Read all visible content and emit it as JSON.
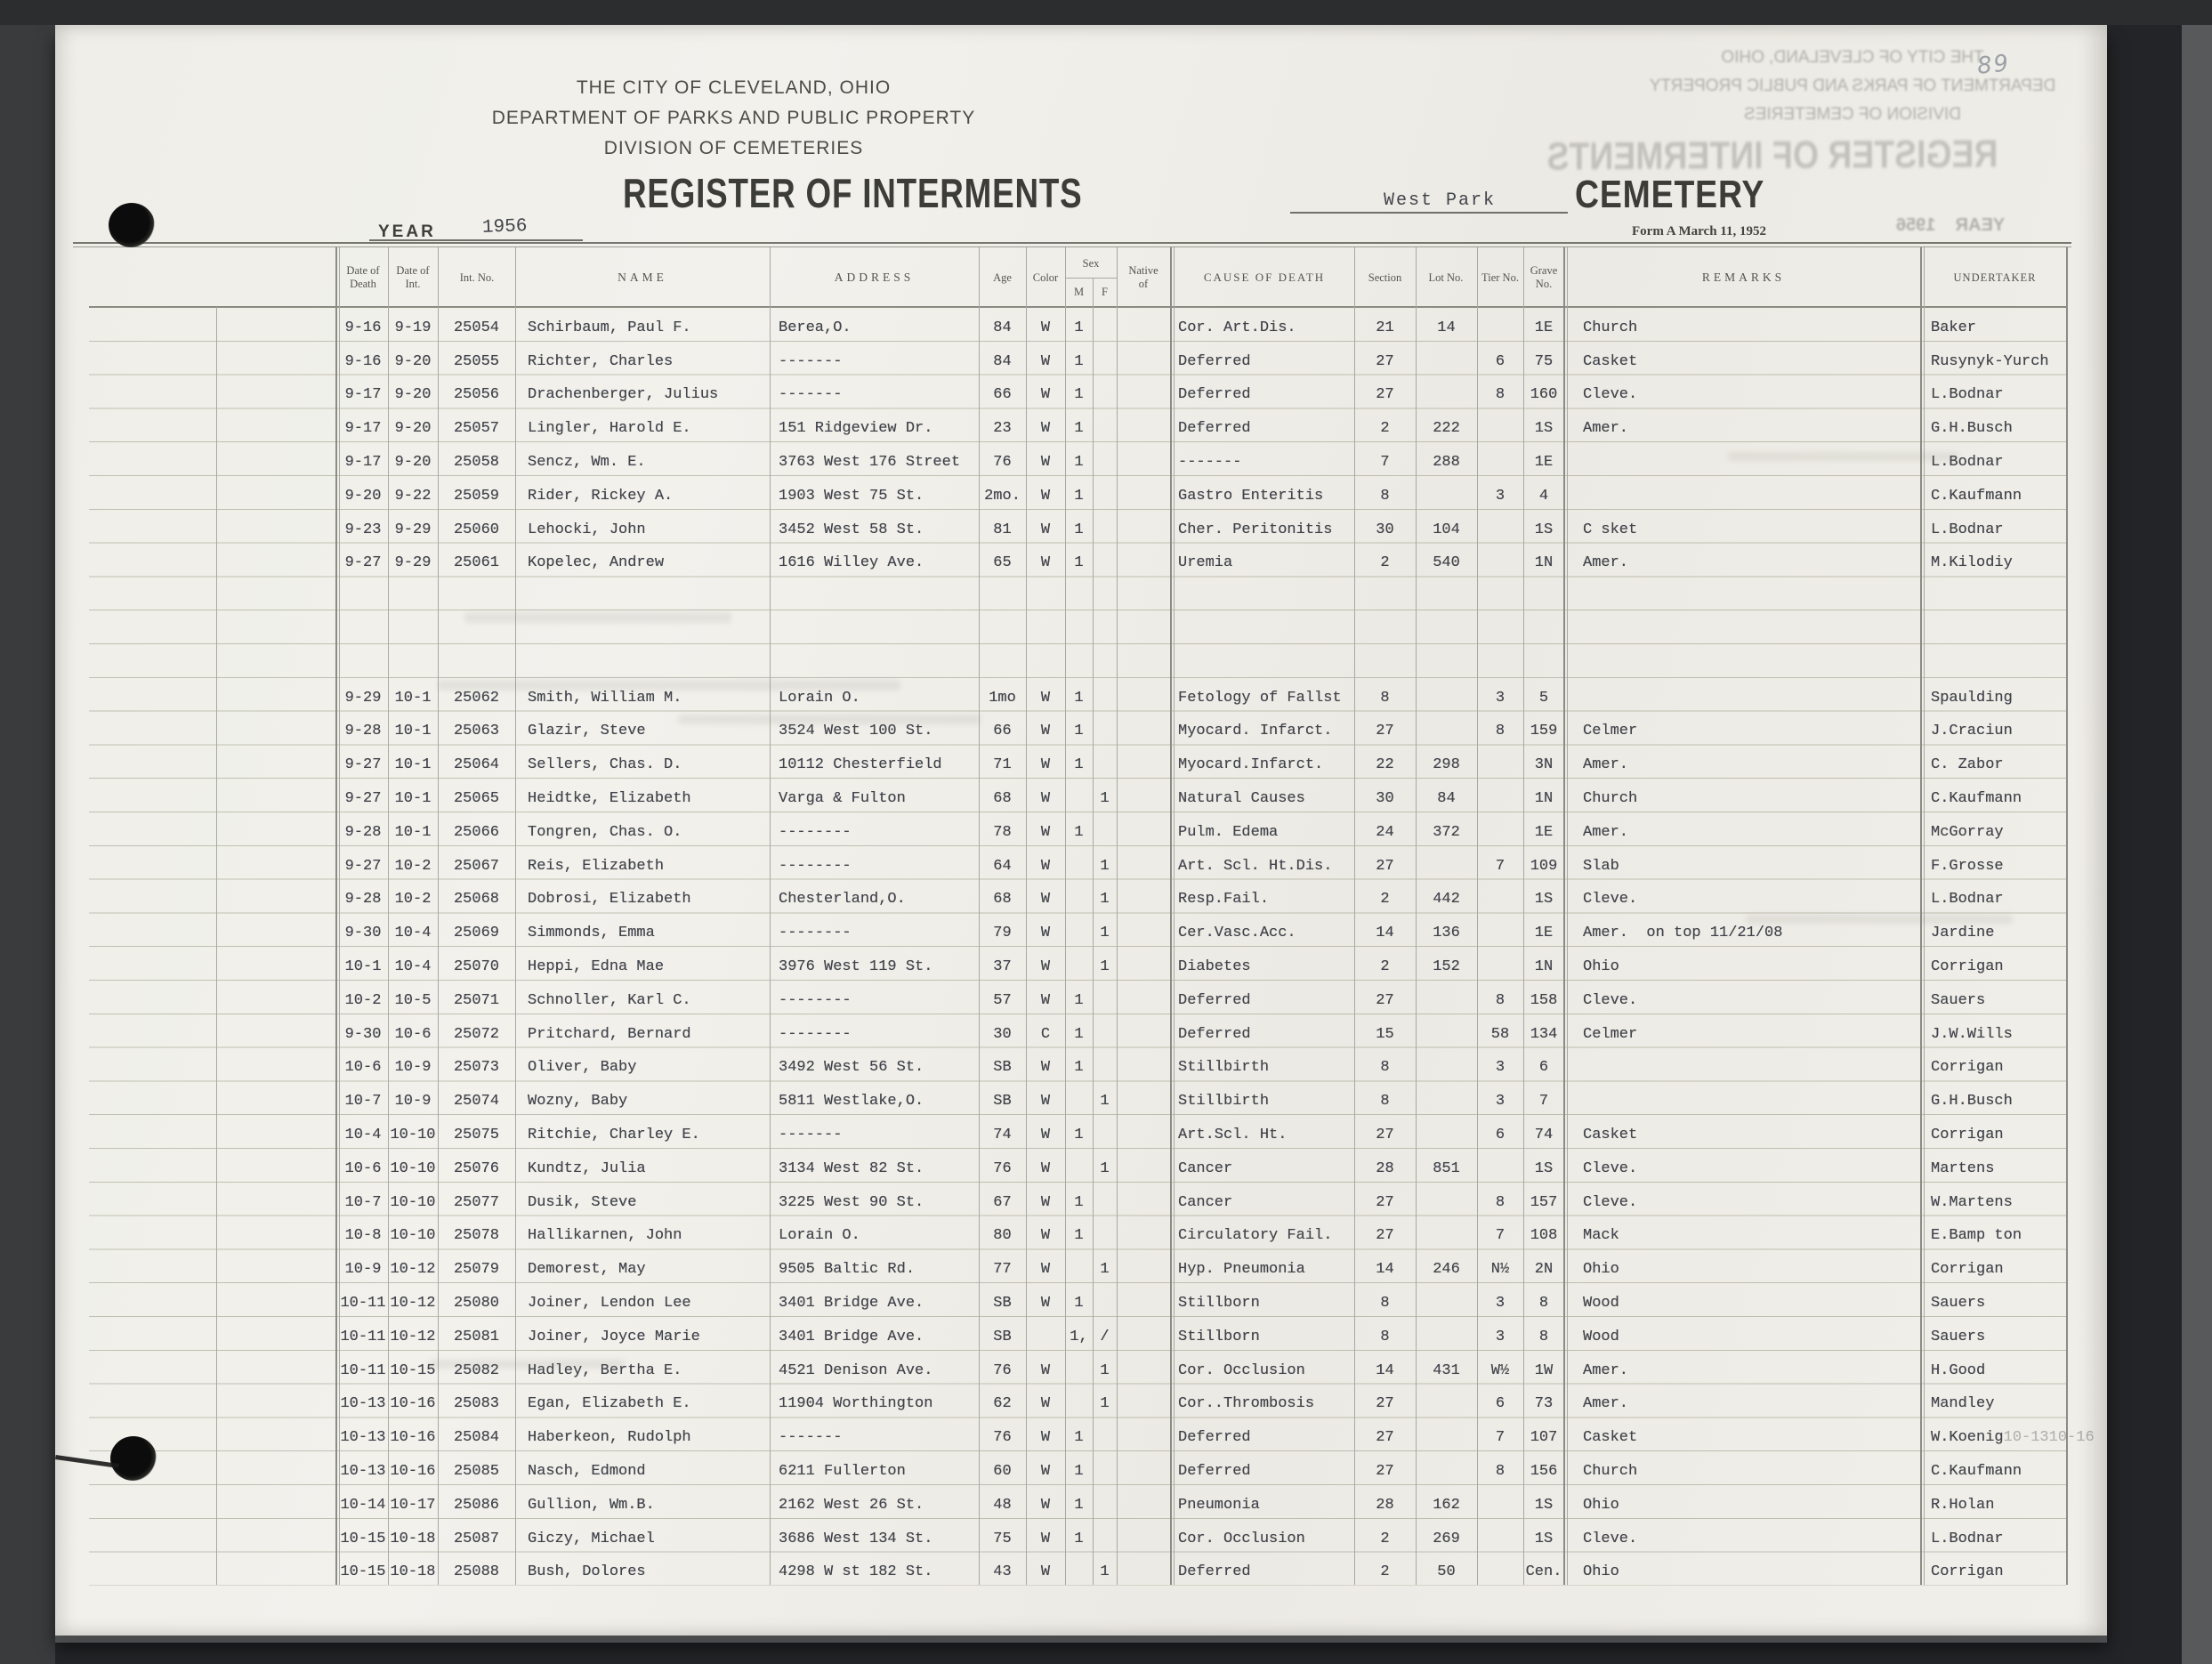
{
  "page_number": "89",
  "header": {
    "org_line1": "THE CITY OF CLEVELAND, OHIO",
    "org_line2": "DEPARTMENT OF PARKS AND PUBLIC PROPERTY",
    "org_line3": "DIVISION OF CEMETERIES",
    "title": "REGISTER OF INTERMENTS",
    "cemetery_name": "West Park",
    "cemetery_label": "CEMETERY",
    "year_label": "YEAR",
    "year_value": "1956",
    "form_note": "Form A March 11, 1952"
  },
  "colors": {
    "paper": "#f0efe9",
    "ink": "#41434b",
    "print": "#4a4a46",
    "binder_dark": "#232427",
    "binder_light": "#58595b",
    "pencil": "#9aa0a6"
  },
  "table": {
    "headers": {
      "date_of_death": "Date of Death",
      "date_of_int": "Date of Int.",
      "int_no": "Int. No.",
      "name": "NAME",
      "address": "ADDRESS",
      "age": "Age",
      "color": "Color",
      "sex": "Sex",
      "sex_m": "M",
      "sex_f": "F",
      "native_of": "Native of",
      "cause": "CAUSE OF DEATH",
      "section": "Section",
      "lot": "Lot No.",
      "tier": "Tier No.",
      "grave": "Grave No.",
      "remarks": "REMARKS",
      "undertaker": "UNDERTAKER"
    },
    "rows": [
      {
        "dd": "9-16",
        "di": "9-19",
        "no": "25054",
        "name": "Schirbaum, Paul F.",
        "addr": "Berea,O.",
        "age": "84",
        "color": "W",
        "m": "1",
        "f": "",
        "cause": "Cor. Art.Dis.",
        "section": "21",
        "lot": "14",
        "tier": "",
        "grave": "1E",
        "remarks": "Church",
        "undertaker": "Baker"
      },
      {
        "dd": "9-16",
        "di": "9-20",
        "no": "25055",
        "name": "Richter, Charles",
        "addr": "-------",
        "age": "84",
        "color": "W",
        "m": "1",
        "f": "",
        "cause": "Deferred",
        "section": "27",
        "lot": "",
        "tier": "6",
        "grave": "75",
        "remarks": "Casket",
        "undertaker": "Rusynyk-Yurch"
      },
      {
        "dd": "9-17",
        "di": "9-20",
        "no": "25056",
        "name": "Drachenberger, Julius",
        "addr": "-------",
        "age": "66",
        "color": "W",
        "m": "1",
        "f": "",
        "cause": "Deferred",
        "section": "27",
        "lot": "",
        "tier": "8",
        "grave": "160",
        "remarks": "Cleve.",
        "undertaker": "L.Bodnar"
      },
      {
        "dd": "9-17",
        "di": "9-20",
        "no": "25057",
        "name": "Lingler, Harold E.",
        "addr": "151 Ridgeview Dr.",
        "age": "23",
        "color": "W",
        "m": "1",
        "f": "",
        "cause": "Deferred",
        "section": "2",
        "lot": "222",
        "tier": "",
        "grave": "1S",
        "remarks": "Amer.",
        "undertaker": "G.H.Busch"
      },
      {
        "dd": "9-17",
        "di": "9-20",
        "no": "25058",
        "name": "Sencz, Wm. E.",
        "addr": "3763 West 176 Street",
        "age": "76",
        "color": "W",
        "m": "1",
        "f": "",
        "cause": "-------",
        "section": "7",
        "lot": "288",
        "tier": "",
        "grave": "1E",
        "remarks": "",
        "undertaker": "L.Bodnar"
      },
      {
        "dd": "9-20",
        "di": "9-22",
        "no": "25059",
        "name": "Rider, Rickey A.",
        "addr": "1903 West 75 St.",
        "age": "2mo.",
        "color": "W",
        "m": "1",
        "f": "",
        "cause": "Gastro Enteritis",
        "section": "8",
        "lot": "",
        "tier": "3",
        "grave": "4",
        "remarks": "",
        "undertaker": "C.Kaufmann"
      },
      {
        "dd": "9-23",
        "di": "9-29",
        "no": "25060",
        "name": "Lehocki, John",
        "addr": "3452 West 58 St.",
        "age": "81",
        "color": "W",
        "m": "1",
        "f": "",
        "cause": "Cher. Peritonitis",
        "section": "30",
        "lot": "104",
        "tier": "",
        "grave": "1S",
        "remarks": "C sket",
        "undertaker": "L.Bodnar"
      },
      {
        "dd": "9-27",
        "di": "9-29",
        "no": "25061",
        "name": "Kopelec, Andrew",
        "addr": "1616 Willey Ave.",
        "age": "65",
        "color": "W",
        "m": "1",
        "f": "",
        "cause": "Uremia",
        "section": "2",
        "lot": "540",
        "tier": "",
        "grave": "1N",
        "remarks": "Amer.",
        "undertaker": "M.Kilodiy"
      },
      {},
      {},
      {},
      {
        "dd": "9-29",
        "di": "10-1",
        "no": "25062",
        "name": "Smith, William M.",
        "addr": "Lorain O.",
        "age": "1mo",
        "color": "W",
        "m": "1",
        "f": "",
        "cause": "Fetology of Fallst",
        "section": "8",
        "lot": "",
        "tier": "3",
        "grave": "5",
        "remarks": "",
        "undertaker": "Spaulding"
      },
      {
        "dd": "9-28",
        "di": "10-1",
        "no": "25063",
        "name": "Glazir, Steve",
        "addr": "3524 West 100 St.",
        "age": "66",
        "color": "W",
        "m": "1",
        "f": "",
        "cause": "Myocard. Infarct.",
        "section": "27",
        "lot": "",
        "tier": "8",
        "grave": "159",
        "remarks": "Celmer",
        "undertaker": "J.Craciun"
      },
      {
        "dd": "9-27",
        "di": "10-1",
        "no": "25064",
        "name": "Sellers, Chas. D.",
        "addr": "10112 Chesterfield",
        "age": "71",
        "color": "W",
        "m": "1",
        "f": "",
        "cause": "Myocard.Infarct.",
        "section": "22",
        "lot": "298",
        "tier": "",
        "grave": "3N",
        "remarks": "Amer.",
        "undertaker": "C. Zabor"
      },
      {
        "dd": "9-27",
        "di": "10-1",
        "no": "25065",
        "name": "Heidtke, Elizabeth",
        "addr": "Varga & Fulton",
        "age": "68",
        "color": "W",
        "m": "",
        "f": "1",
        "cause": "Natural Causes",
        "section": "30",
        "lot": "84",
        "tier": "",
        "grave": "1N",
        "remarks": "Church",
        "undertaker": "C.Kaufmann"
      },
      {
        "dd": "9-28",
        "di": "10-1",
        "no": "25066",
        "name": "Tongren, Chas. O.",
        "addr": "--------",
        "age": "78",
        "color": "W",
        "m": "1",
        "f": "",
        "cause": "Pulm. Edema",
        "section": "24",
        "lot": "372",
        "tier": "",
        "grave": "1E",
        "remarks": "Amer.",
        "undertaker": "McGorray"
      },
      {
        "dd": "9-27",
        "di": "10-2",
        "no": "25067",
        "name": "Reis, Elizabeth",
        "addr": "--------",
        "age": "64",
        "color": "W",
        "m": "",
        "f": "1",
        "cause": "Art. Scl. Ht.Dis.",
        "section": "27",
        "lot": "",
        "tier": "7",
        "grave": "109",
        "remarks": "Slab",
        "undertaker": "F.Grosse"
      },
      {
        "dd": "9-28",
        "di": "10-2",
        "no": "25068",
        "name": "Dobrosi, Elizabeth",
        "addr": "Chesterland,O.",
        "age": "68",
        "color": "W",
        "m": "",
        "f": "1",
        "cause": "Resp.Fail.",
        "section": "2",
        "lot": "442",
        "tier": "",
        "grave": "1S",
        "remarks": "Cleve.",
        "undertaker": "L.Bodnar"
      },
      {
        "dd": "9-30",
        "di": "10-4",
        "no": "25069",
        "name": "Simmonds, Emma",
        "addr": "--------",
        "age": "79",
        "color": "W",
        "m": "",
        "f": "1",
        "cause": "Cer.Vasc.Acc.",
        "section": "14",
        "lot": "136",
        "tier": "",
        "grave": "1E",
        "remarks": "Amer.  on top 11/21/08",
        "undertaker": "Jardine"
      },
      {
        "dd": "10-1",
        "di": "10-4",
        "no": "25070",
        "name": "Heppi, Edna Mae",
        "addr": "3976 West 119 St.",
        "age": "37",
        "color": "W",
        "m": "",
        "f": "1",
        "cause": "Diabetes",
        "section": "2",
        "lot": "152",
        "tier": "",
        "grave": "1N",
        "remarks": "Ohio",
        "undertaker": "Corrigan"
      },
      {
        "dd": "10-2",
        "di": "10-5",
        "no": "25071",
        "name": "Schnoller, Karl C.",
        "addr": "--------",
        "age": "57",
        "color": "W",
        "m": "1",
        "f": "",
        "cause": "Deferred",
        "section": "27",
        "lot": "",
        "tier": "8",
        "grave": "158",
        "remarks": "Cleve.",
        "undertaker": "Sauers"
      },
      {
        "dd": "9-30",
        "di": "10-6",
        "no": "25072",
        "name": "Pritchard, Bernard",
        "addr": "--------",
        "age": "30",
        "color": "C",
        "m": "1",
        "f": "",
        "cause": "Deferred",
        "section": "15",
        "lot": "",
        "tier": "58",
        "grave": "134",
        "remarks": "Celmer",
        "undertaker": "J.W.Wills"
      },
      {
        "dd": "10-6",
        "di": "10-9",
        "no": "25073",
        "name": "Oliver, Baby",
        "addr": "3492 West 56 St.",
        "age": "SB",
        "color": "W",
        "m": "1",
        "f": "",
        "cause": "Stillbirth",
        "section": "8",
        "lot": "",
        "tier": "3",
        "grave": "6",
        "remarks": "",
        "undertaker": "Corrigan"
      },
      {
        "dd": "10-7",
        "di": "10-9",
        "no": "25074",
        "name": "Wozny, Baby",
        "addr": "5811 Westlake,O.",
        "age": "SB",
        "color": "W",
        "m": "",
        "f": "1",
        "cause": "Stillbirth",
        "section": "8",
        "lot": "",
        "tier": "3",
        "grave": "7",
        "remarks": "",
        "undertaker": "G.H.Busch"
      },
      {
        "dd": "10-4",
        "di": "10-10",
        "no": "25075",
        "name": "Ritchie, Charley E.",
        "addr": "-------",
        "age": "74",
        "color": "W",
        "m": "1",
        "f": "",
        "cause": "Art.Scl. Ht.",
        "section": "27",
        "lot": "",
        "tier": "6",
        "grave": "74",
        "remarks": "Casket",
        "undertaker": "Corrigan"
      },
      {
        "dd": "10-6",
        "di": "10-10",
        "no": "25076",
        "name": "Kundtz, Julia",
        "addr": "3134 West 82 St.",
        "age": "76",
        "color": "W",
        "m": "",
        "f": "1",
        "cause": "Cancer",
        "section": "28",
        "lot": "851",
        "tier": "",
        "grave": "1S",
        "remarks": "Cleve.",
        "undertaker": "Martens"
      },
      {
        "dd": "10-7",
        "di": "10-10",
        "no": "25077",
        "name": "Dusik, Steve",
        "addr": "3225 West 90 St.",
        "age": "67",
        "color": "W",
        "m": "1",
        "f": "",
        "cause": "Cancer",
        "section": "27",
        "lot": "",
        "tier": "8",
        "grave": "157",
        "remarks": "Cleve.",
        "undertaker": "W.Martens"
      },
      {
        "dd": "10-8",
        "di": "10-10",
        "no": "25078",
        "name": "Hallikarnen, John",
        "addr": "Lorain O.",
        "age": "80",
        "color": "W",
        "m": "1",
        "f": "",
        "cause": "Circulatory Fail.",
        "section": "27",
        "lot": "",
        "tier": "7",
        "grave": "108",
        "remarks": "Mack",
        "undertaker": "E.Bamp ton"
      },
      {
        "dd": "10-9",
        "di": "10-12",
        "no": "25079",
        "name": "Demorest, May",
        "addr": "9505 Baltic Rd.",
        "age": "77",
        "color": "W",
        "m": "",
        "f": "1",
        "cause": "Hyp. Pneumonia",
        "section": "14",
        "lot": "246",
        "tier": "N½",
        "grave": "2N",
        "remarks": "Ohio",
        "undertaker": "Corrigan"
      },
      {
        "dd": "10-11",
        "di": "10-12",
        "no": "25080",
        "name": "Joiner, Lendon Lee",
        "addr": "3401 Bridge Ave.",
        "age": "SB",
        "color": "W",
        "m": "1",
        "f": "",
        "cause": "Stillborn",
        "section": "8",
        "lot": "",
        "tier": "3",
        "grave": "8",
        "remarks": "Wood",
        "undertaker": "Sauers"
      },
      {
        "dd": "10-11",
        "di": "10-12",
        "no": "25081",
        "name": "Joiner, Joyce Marie",
        "addr": "3401 Bridge Ave.",
        "age": "SB",
        "color": "",
        "m": "1,",
        "f": "/",
        "cause": "Stillborn",
        "section": "8",
        "lot": "",
        "tier": "3",
        "grave": "8",
        "remarks": "Wood",
        "undertaker": "Sauers"
      },
      {
        "dd": "10-11",
        "di": "10-15",
        "no": "25082",
        "name": "Hadley, Bertha E.",
        "addr": "4521 Denison Ave.",
        "age": "76",
        "color": "W",
        "m": "",
        "f": "1",
        "cause": "Cor. Occlusion",
        "section": "14",
        "lot": "431",
        "tier": "W½",
        "grave": "1W",
        "remarks": "Amer.",
        "undertaker": "H.Good"
      },
      {
        "dd": "10-13",
        "di": "10-16",
        "no": "25083",
        "name": "Egan, Elizabeth E.",
        "addr": "11904 Worthington",
        "age": "62",
        "color": "W",
        "m": "",
        "f": "1",
        "cause": "Cor..Thrombosis",
        "section": "27",
        "lot": "",
        "tier": "6",
        "grave": "73",
        "remarks": "Amer.",
        "undertaker": "Mandley"
      },
      {
        "dd": "10-13",
        "di": "10-16",
        "no": "25084",
        "name": "Haberkeon, Rudolph",
        "addr": "-------",
        "age": "76",
        "color": "W",
        "m": "1",
        "f": "",
        "cause": "Deferred",
        "section": "27",
        "lot": "",
        "tier": "7",
        "grave": "107",
        "remarks": "Casket",
        "undertaker": "W.Koenig",
        "undertaker_ghost": "10-1310-16"
      },
      {
        "dd": "10-13",
        "di": "10-16",
        "no": "25085",
        "name": "Nasch, Edmond",
        "addr": "6211 Fullerton",
        "age": "60",
        "color": "W",
        "m": "1",
        "f": "",
        "cause": "Deferred",
        "section": "27",
        "lot": "",
        "tier": "8",
        "grave": "156",
        "remarks": "Church",
        "undertaker": "C.Kaufmann"
      },
      {
        "dd": "10-14",
        "di": "10-17",
        "no": "25086",
        "name": "Gullion, Wm.B.",
        "addr": "2162 West 26 St.",
        "age": "48",
        "color": "W",
        "m": "1",
        "f": "",
        "cause": "Pneumonia",
        "section": "28",
        "lot": "162",
        "tier": "",
        "grave": "1S",
        "remarks": "Ohio",
        "undertaker": "R.Holan"
      },
      {
        "dd": "10-15",
        "di": "10-18",
        "no": "25087",
        "name": "Giczy, Michael",
        "addr": "3686 West 134 St.",
        "age": "75",
        "color": "W",
        "m": "1",
        "f": "",
        "cause": "Cor. Occlusion",
        "section": "2",
        "lot": "269",
        "tier": "",
        "grave": "1S",
        "remarks": "Cleve.",
        "undertaker": "L.Bodnar"
      },
      {
        "dd": "10-15",
        "di": "10-18",
        "no": "25088",
        "name": "Bush, Dolores",
        "addr": "4298 W st 182 St.",
        "age": "43",
        "color": "W",
        "m": "",
        "f": "1",
        "cause": "Deferred",
        "section": "2",
        "lot": "50",
        "tier": "",
        "grave": "Cen.",
        "remarks": "Ohio",
        "undertaker": "Corrigan"
      }
    ]
  }
}
